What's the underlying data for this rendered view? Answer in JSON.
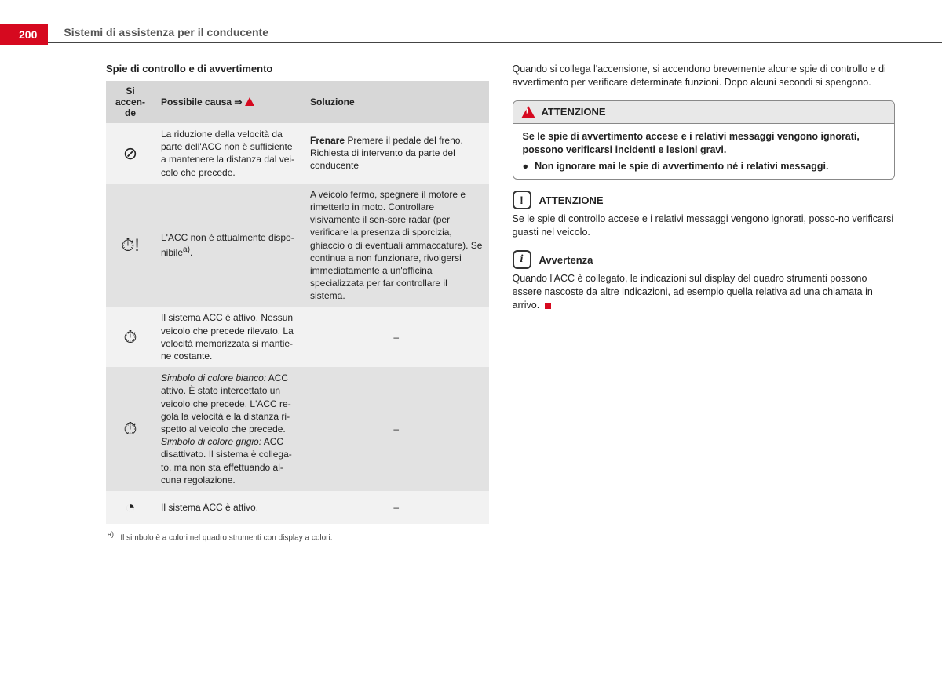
{
  "page_number": "200",
  "chapter": "Sistemi di assistenza per il conducente",
  "left": {
    "section_title": "Spie di controllo e di avvertimento",
    "headers": [
      "Si accen-\nde",
      "Possibile causa ⇒",
      "Soluzione"
    ],
    "rows": [
      {
        "icon": "⊘",
        "cause": "La riduzione della velocità da parte dell'ACC non è sufficiente a mantenere la distanza dal vei-colo che precede.",
        "solution_html": "<b>Frenare</b> Premere il pedale del freno. Richiesta di intervento da parte del conducente"
      },
      {
        "icon": "⏱!",
        "cause_html": "L'ACC non è attualmente dispo-nibile<sup>a)</sup>.",
        "solution": "A veicolo fermo, spegnere il motore e rimetterlo in moto. Controllare visivamente il sen-sore radar (per verificare la presenza di sporcizia, ghiaccio o di eventuali ammaccature). Se continua a non funzionare, rivolgersi immediatamente a un'officina specializzata per far controllare il sistema."
      },
      {
        "icon": "⏱",
        "cause": "Il sistema ACC è attivo. Nessun veicolo che precede rilevato. La velocità memorizzata si mantie-ne costante.",
        "solution": "–"
      },
      {
        "icon": "⏱",
        "cause_html": "<i>Simbolo di colore bianco:</i> ACC attivo. È stato intercettato un veicolo che precede. L'ACC re-gola la velocità e la distanza ri-spetto al veicolo che precede.<br><i>Simbolo di colore grigio:</i> ACC disattivato. Il sistema è collega-to, ma non sta effettuando al-cuna regolazione.",
        "solution": "–"
      },
      {
        "icon": "◔",
        "cause": "Il sistema ACC è attivo.",
        "solution": "–"
      }
    ],
    "footnote_marker": "a)",
    "footnote": "Il simbolo è a colori nel quadro strumenti con display a colori."
  },
  "right": {
    "intro": "Quando si collega l'accensione, si accendono brevemente alcune spie di controllo e di avvertimento per verificare determinate funzioni. Dopo alcuni secondi si spengono.",
    "warning": {
      "title": "ATTENZIONE",
      "body": "Se le spie di avvertimento accese e i relativi messaggi vengono ignorati, possono verificarsi incidenti e lesioni gravi.",
      "bullet": "Non ignorare mai le spie di avvertimento né i relativi messaggi."
    },
    "attention2": {
      "title": "ATTENZIONE",
      "body": "Se le spie di controllo accese e i relativi messaggi vengono ignorati, posso-no verificarsi guasti nel veicolo."
    },
    "info_note": {
      "title": "Avvertenza",
      "body": "Quando l'ACC è collegato, le indicazioni sul display del quadro strumenti possono essere nascoste da altre indicazioni, ad esempio quella relativa ad una chiamata in arrivo."
    }
  }
}
